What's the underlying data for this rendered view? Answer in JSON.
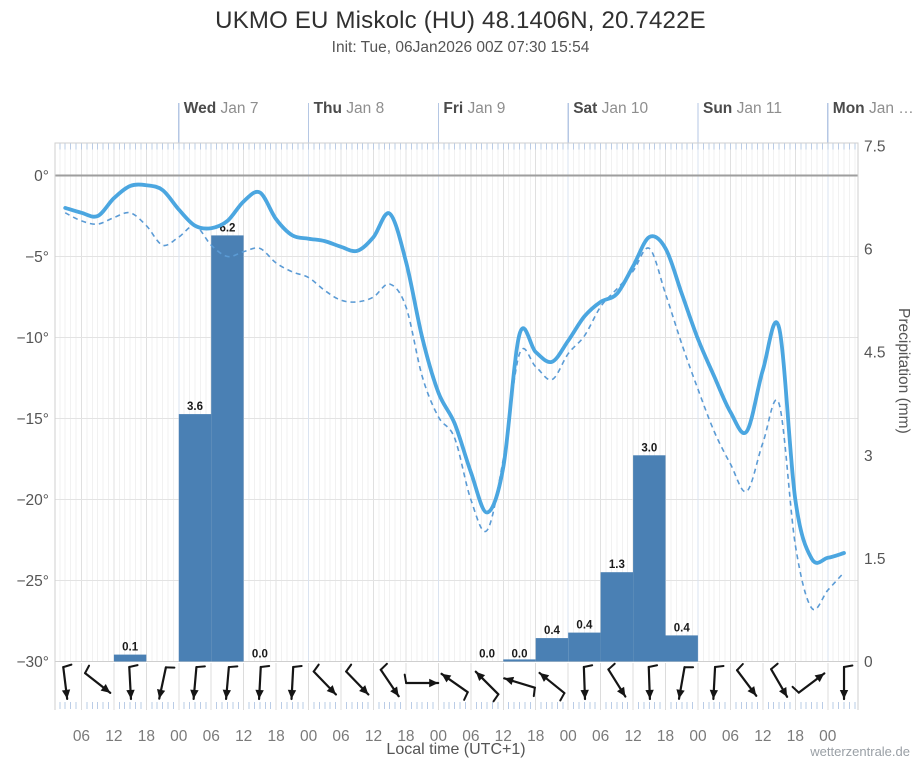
{
  "header": {
    "title": "UKMO EU Miskolc (HU) 48.1406N, 20.7422E",
    "subtitle": "Init: Tue, 06Jan2026 00Z 07:30 15:54"
  },
  "watermark": "wetterzentrale.de",
  "axes": {
    "x_label": "Local time (UTC+1)",
    "days": [
      {
        "name": "Wed",
        "date": "Jan 7",
        "start_hour": 24
      },
      {
        "name": "Thu",
        "date": "Jan 8",
        "start_hour": 48
      },
      {
        "name": "Fri",
        "date": "Jan 9",
        "start_hour": 72
      },
      {
        "name": "Sat",
        "date": "Jan 10",
        "start_hour": 96
      },
      {
        "name": "Sun",
        "date": "Jan 11",
        "start_hour": 120
      },
      {
        "name": "Mon",
        "date": "Jan …",
        "start_hour": 144
      }
    ],
    "x_ticks": {
      "hours": [
        6,
        12,
        18,
        24,
        30,
        36,
        42,
        48,
        54,
        60,
        66,
        72,
        78,
        84,
        90,
        96,
        102,
        108,
        114,
        120,
        126,
        132,
        138,
        144
      ],
      "labels": [
        "06",
        "12",
        "18",
        "00",
        "06",
        "12",
        "18",
        "00",
        "06",
        "12",
        "18",
        "00",
        "06",
        "12",
        "18",
        "00",
        "06",
        "12",
        "18",
        "00",
        "06",
        "12",
        "18",
        "00"
      ]
    },
    "left_axis": {
      "tick_values": [
        0,
        -5,
        -10,
        -15,
        -20,
        -25,
        -30
      ],
      "tick_labels": [
        "0°",
        "−5°",
        "−10°",
        "−15°",
        "−20°",
        "−25°",
        "−30°"
      ]
    },
    "right_axis": {
      "title": "Precipitation (mm)",
      "tick_values": [
        7.5,
        6,
        4.5,
        3,
        1.5,
        0
      ],
      "tick_labels": [
        "7.5",
        "6",
        "4.5",
        "3",
        "1.5",
        "0"
      ]
    }
  },
  "colors": {
    "temp_line": "#4BA6E0",
    "dew_line": "#5B9BD5",
    "precip_bar": "#4A80B4",
    "arrow": "#151515",
    "zero_line": "#9E9E9E",
    "grid_major": "#E3E3E3",
    "grid_minor": "#F1F1F1",
    "grid_6h": "#E0E0E0",
    "day_line": "#DAE3F0",
    "day_tick": "#B5C7E4",
    "hour_tick": "#BACCE6",
    "border": "#CFCFCF",
    "bar_label": "#1A1A1A"
  },
  "chart_data": [
    {
      "type": "line",
      "title": "Temperature curves (°C), hours counted from Tue 00 local",
      "ylim": [
        -30,
        0
      ],
      "x_hours": [
        3,
        6,
        9,
        12,
        15,
        18,
        21,
        24,
        27,
        30,
        33,
        36,
        39,
        42,
        45,
        48,
        51,
        54,
        57,
        60,
        63,
        66,
        69,
        72,
        75,
        78,
        81,
        84,
        87,
        90,
        93,
        96,
        99,
        102,
        105,
        108,
        111,
        114,
        117,
        120,
        123,
        126,
        129,
        132,
        135,
        138,
        141,
        144,
        147
      ],
      "series": [
        {
          "name": "temperature-solid-line",
          "values": [
            -2.0,
            -2.3,
            -2.5,
            -1.4,
            -0.65,
            -0.6,
            -0.9,
            -2.1,
            -3.1,
            -3.25,
            -2.8,
            -1.6,
            -1.05,
            -2.7,
            -3.7,
            -3.9,
            -4.05,
            -4.4,
            -4.65,
            -3.8,
            -2.35,
            -5.3,
            -10.0,
            -13.4,
            -15.3,
            -18.3,
            -20.8,
            -18.0,
            -9.8,
            -10.9,
            -11.5,
            -10.2,
            -8.7,
            -7.8,
            -7.3,
            -5.6,
            -3.8,
            -4.5,
            -7.3,
            -10.1,
            -12.4,
            -14.6,
            -15.8,
            -12.0,
            -9.4,
            -20.0,
            -23.65,
            -23.6,
            -23.3
          ]
        },
        {
          "name": "dewpoint-dashed-line",
          "values": [
            -2.3,
            -2.8,
            -3.0,
            -2.6,
            -2.3,
            -3.1,
            -4.3,
            -3.8,
            -3.1,
            -4.3,
            -5.0,
            -4.7,
            -4.5,
            -5.4,
            -5.95,
            -6.3,
            -7.1,
            -7.7,
            -7.8,
            -7.5,
            -6.7,
            -8.1,
            -12.4,
            -14.9,
            -16.2,
            -20.0,
            -21.9,
            -17.5,
            -11.0,
            -11.8,
            -12.6,
            -11.0,
            -9.9,
            -8.1,
            -7.0,
            -5.9,
            -4.5,
            -7.3,
            -10.4,
            -13.2,
            -15.8,
            -17.8,
            -19.5,
            -16.5,
            -14.1,
            -22.8,
            -26.7,
            -25.6,
            -24.5
          ]
        }
      ]
    },
    {
      "type": "bar",
      "title": "Precipitation (mm / 6h)",
      "ylim": [
        0,
        7.5
      ],
      "bars": [
        {
          "start_hour": 12,
          "end_hour": 18,
          "label": "0.1",
          "mm": 0.1
        },
        {
          "start_hour": 24,
          "end_hour": 30,
          "label": "3.6",
          "mm": 3.6
        },
        {
          "start_hour": 30,
          "end_hour": 36,
          "label": "6.2",
          "mm": 6.2
        },
        {
          "start_hour": 36,
          "end_hour": 42,
          "label": "0.0",
          "mm": 0
        },
        {
          "start_hour": 78,
          "end_hour": 84,
          "label": "0.0",
          "mm": 0
        },
        {
          "start_hour": 84,
          "end_hour": 90,
          "label": "0.0",
          "mm": 0.03
        },
        {
          "start_hour": 90,
          "end_hour": 96,
          "label": "0.4",
          "mm": 0.34
        },
        {
          "start_hour": 96,
          "end_hour": 102,
          "label": "0.4",
          "mm": 0.42
        },
        {
          "start_hour": 102,
          "end_hour": 108,
          "label": "1.3",
          "mm": 1.3
        },
        {
          "start_hour": 108,
          "end_hour": 114,
          "label": "3.0",
          "mm": 3.0
        },
        {
          "start_hour": 114,
          "end_hour": 120,
          "label": "0.4",
          "mm": 0.38
        }
      ]
    },
    {
      "type": "scatter",
      "title": "wind-direction-arrows (rotation: 0°=east, 90°=south/down)",
      "x_hours": [
        3,
        9,
        15,
        21,
        27,
        33,
        39,
        45,
        51,
        57,
        63,
        69,
        75,
        81,
        87,
        93,
        99,
        105,
        111,
        117,
        123,
        129,
        135,
        141,
        147
      ],
      "rotation_deg": [
        83,
        38,
        87,
        102,
        95,
        95,
        93,
        93,
        46,
        46,
        56,
        0,
        215,
        225,
        197,
        219,
        88,
        58,
        88,
        100,
        93,
        53,
        60,
        323,
        90
      ]
    }
  ]
}
